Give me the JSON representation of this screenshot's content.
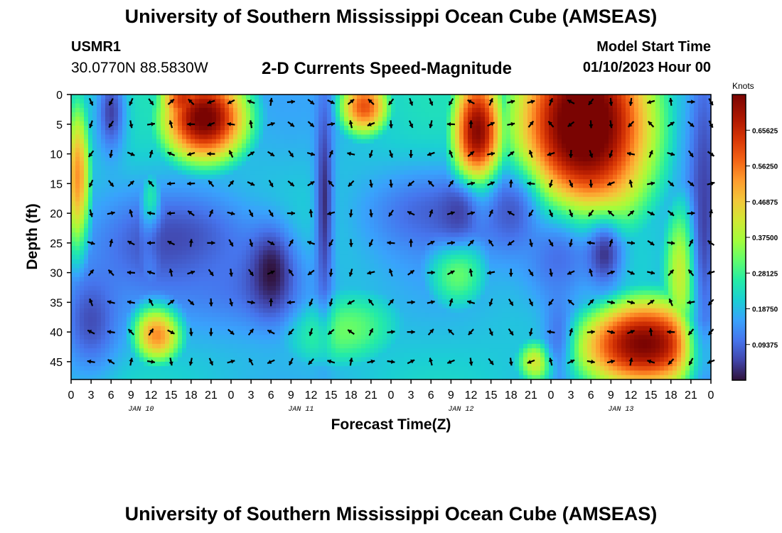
{
  "header": {
    "title": "University of Southern Mississippi Ocean Cube (AMSEAS)",
    "station_id": "USMR1",
    "station_coords": "30.0770N  88.5830W",
    "subtitle": "2-D Currents Speed-Magnitude",
    "model_start_label": "Model Start Time",
    "model_start_value": "01/10/2023 Hour 00"
  },
  "footer": {
    "title": "University of Southern Mississippi Ocean Cube (AMSEAS)"
  },
  "chart_data": {
    "type": "heatmap",
    "title": "2-D Currents Speed-Magnitude",
    "xlabel": "Forecast Time(Z)",
    "ylabel": "Depth (ft)",
    "x_hours_range": [
      0,
      96
    ],
    "x_tick_labels": [
      "0",
      "3",
      "6",
      "9",
      "12",
      "15",
      "18",
      "21",
      "0",
      "3",
      "6",
      "9",
      "12",
      "15",
      "18",
      "21",
      "0",
      "3",
      "6",
      "9",
      "12",
      "15",
      "18",
      "21",
      "0",
      "3",
      "6",
      "9",
      "12",
      "15",
      "18",
      "21",
      "0"
    ],
    "date_labels": [
      "JAN 10",
      "JAN 11",
      "JAN 12",
      "JAN 13"
    ],
    "y_range_ft": [
      0,
      48
    ],
    "y_ticks": [
      0,
      5,
      10,
      15,
      20,
      25,
      30,
      35,
      40,
      45
    ],
    "colorbar": {
      "unit": "Knots",
      "range": [
        0,
        0.75
      ],
      "tick_labels": [
        "0.65625",
        "0.56250",
        "0.46875",
        "0.37500",
        "0.28125",
        "0.18750",
        "0.09375"
      ]
    },
    "grid": false,
    "arrow_depths_ft": [
      0,
      5,
      10,
      15,
      20,
      25,
      30,
      35,
      40,
      45
    ],
    "speed_hotspots_knots": [
      {
        "hour": 20,
        "depth": 4,
        "speed": 0.72,
        "sx": 5,
        "sy": 6
      },
      {
        "hour": 17,
        "depth": 1,
        "speed": 0.6,
        "sx": 3,
        "sy": 4
      },
      {
        "hour": 1,
        "depth": 15,
        "speed": 0.5,
        "sx": 1.6,
        "sy": 11
      },
      {
        "hour": 12,
        "depth": 22,
        "speed": 0.45,
        "sx": 1.3,
        "sy": 6
      },
      {
        "hour": 13,
        "depth": 40,
        "speed": 0.55,
        "sx": 3,
        "sy": 4
      },
      {
        "hour": 44,
        "depth": 2,
        "speed": 0.55,
        "sx": 3,
        "sy": 4
      },
      {
        "hour": 61,
        "depth": 7,
        "speed": 0.7,
        "sx": 3,
        "sy": 9
      },
      {
        "hour": 77,
        "depth": 5,
        "speed": 0.78,
        "sx": 8,
        "sy": 13
      },
      {
        "hour": 86,
        "depth": 42,
        "speed": 0.7,
        "sx": 8,
        "sy": 6
      },
      {
        "hour": 93,
        "depth": 30,
        "speed": 0.5,
        "sx": 3,
        "sy": 10
      },
      {
        "hour": 70,
        "depth": 45,
        "speed": 0.4,
        "sx": 2.5,
        "sy": 3
      },
      {
        "hour": 40,
        "depth": 39,
        "speed": 0.3,
        "sx": 8,
        "sy": 6
      },
      {
        "hour": 58,
        "depth": 29,
        "speed": 0.3,
        "sx": 4,
        "sy": 6
      }
    ],
    "speed_lows_knots": [
      {
        "hour": 6,
        "depth": 3,
        "depth_factor": 0.2,
        "sx": 1.5,
        "sy": 5
      },
      {
        "hour": 16,
        "depth": 25,
        "depth_factor": 0.2,
        "sx": 8,
        "sy": 6
      },
      {
        "hour": 3,
        "depth": 38,
        "depth_factor": 0.25,
        "sx": 3,
        "sy": 6
      },
      {
        "hour": 27,
        "depth": 32,
        "depth_factor": 0.4,
        "sx": 8,
        "sy": 6
      },
      {
        "hour": 30,
        "depth": 30,
        "depth_factor": 0.0,
        "sx": 2.2,
        "sy": 5
      },
      {
        "hour": 38,
        "depth": 18,
        "depth_factor": 0.1,
        "sx": 0.9,
        "sy": 13
      },
      {
        "hour": 54,
        "depth": 20,
        "depth_factor": 0.35,
        "sx": 7,
        "sy": 5
      },
      {
        "hour": 58,
        "depth": 20,
        "depth_factor": 0.2,
        "sx": 2,
        "sy": 3
      },
      {
        "hour": 66,
        "depth": 20,
        "depth_factor": 0.3,
        "sx": 3,
        "sy": 5
      },
      {
        "hour": 73,
        "depth": 28,
        "depth_factor": 0.4,
        "sx": 4,
        "sy": 6
      },
      {
        "hour": 80,
        "depth": 27,
        "depth_factor": 0.15,
        "sx": 2,
        "sy": 4
      },
      {
        "hour": 95,
        "depth": 20,
        "depth_factor": 0.2,
        "sx": 2,
        "sy": 25
      },
      {
        "hour": 73,
        "depth": 40,
        "depth_factor": 0.45,
        "sx": 1.5,
        "sy": 6
      }
    ]
  }
}
